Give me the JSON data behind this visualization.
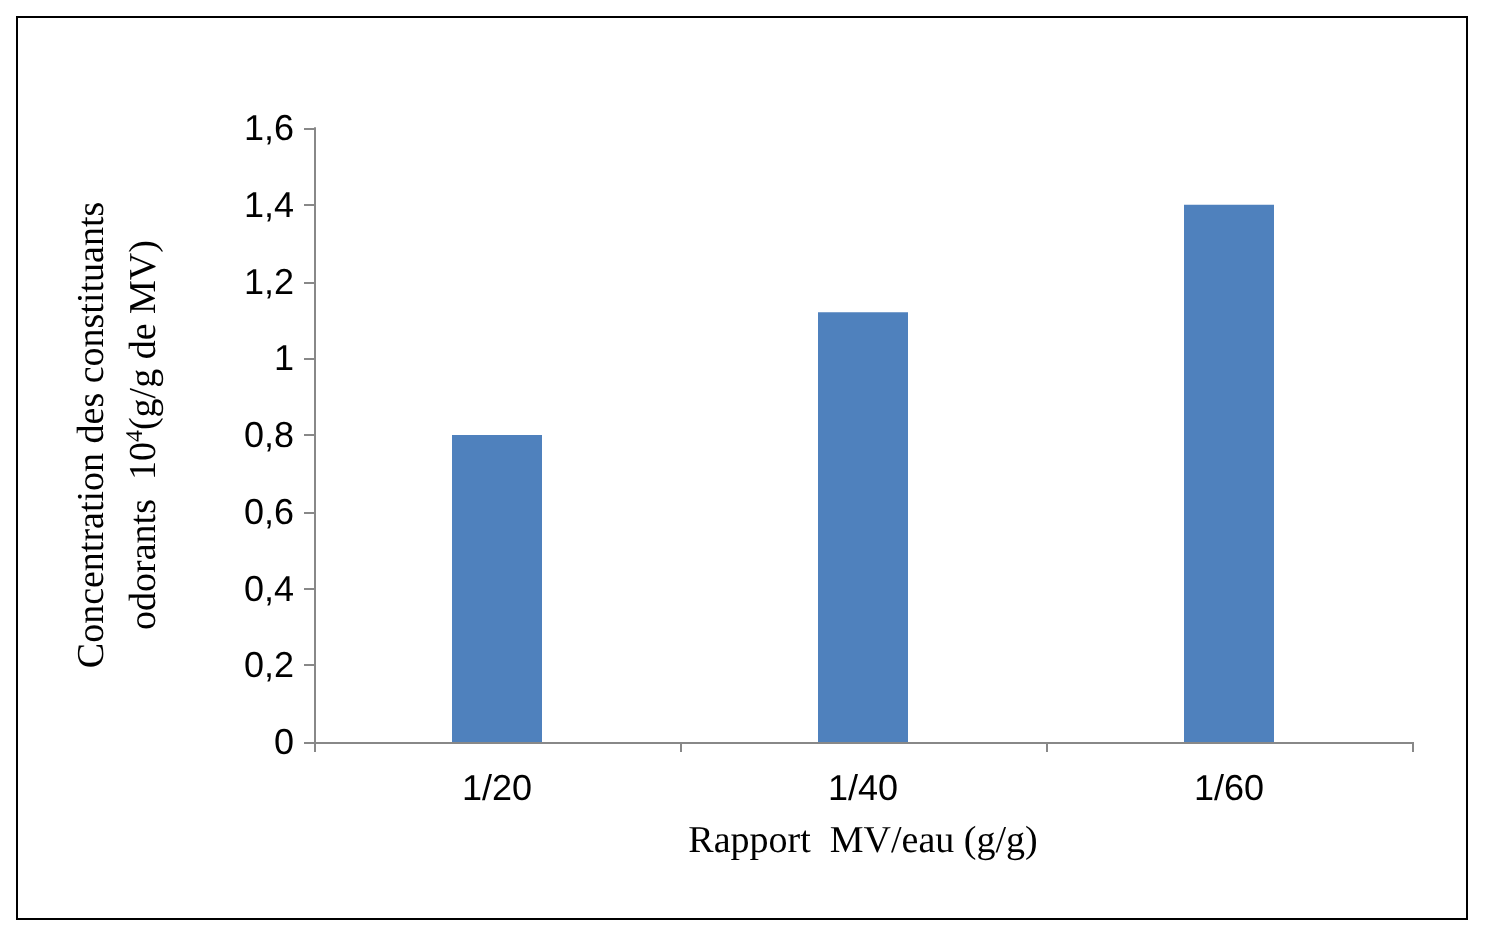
{
  "chart_data": {
    "type": "bar",
    "xlabel": "Rapport  MV/eau (g/g)",
    "ylabel": "Concentration des constituants\nodorants  10$^{4}$(g/g de MV)",
    "categories": [
      "1/20",
      "1/40",
      "1/60"
    ],
    "values": [
      0.8,
      1.12,
      1.4
    ],
    "color": "#4f81bd",
    "ylim": [
      0,
      1.6
    ],
    "yticks": [
      0,
      {
        "value": 0.2,
        "label": "0,2"
      },
      {
        "value": 0.4,
        "label": "0,4"
      },
      {
        "value": 0.6,
        "label": "0,6"
      },
      {
        "value": 0.8,
        "label": "0,8"
      },
      1,
      {
        "value": 1.2,
        "label": "1,2"
      },
      {
        "value": 1.4,
        "label": "1,4"
      },
      {
        "value": 1.6,
        "label": "1,6"
      }
    ],
    "grid": false
  }
}
